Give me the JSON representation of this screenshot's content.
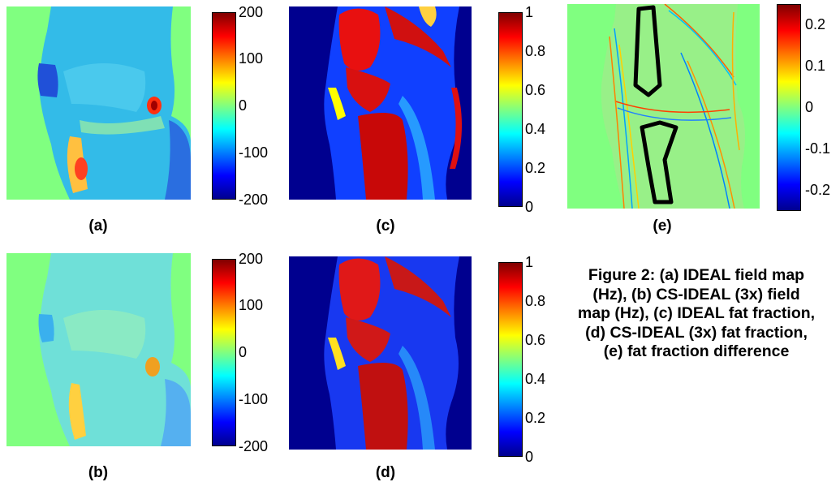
{
  "panels": {
    "a": {
      "label": "(a)"
    },
    "b": {
      "label": "(b)"
    },
    "c": {
      "label": "(c)"
    },
    "d": {
      "label": "(d)"
    },
    "e": {
      "label": "(e)"
    }
  },
  "colorbars": {
    "field": {
      "ticks": [
        "200",
        "100",
        "0",
        "-100",
        "-200"
      ]
    },
    "fraction": {
      "ticks": [
        "1",
        "0.8",
        "0.6",
        "0.4",
        "0.2",
        "0"
      ]
    },
    "difference": {
      "ticks": [
        "0.2",
        "0.1",
        "0",
        "-0.1",
        "-0.2"
      ]
    }
  },
  "caption": "Figure 2: (a) IDEAL field map (Hz), (b) CS-IDEAL (3x) field map (Hz), (c) IDEAL fat fraction, (d) CS-IDEAL (3x) fat fraction, (e) fat fraction difference",
  "colormap": {
    "background_green": "#80ff80",
    "deep_blue": "#00008f",
    "red": "#ff0000",
    "dark_red": "#800000",
    "cyan": "#00ffff",
    "yellow": "#ffff00"
  }
}
